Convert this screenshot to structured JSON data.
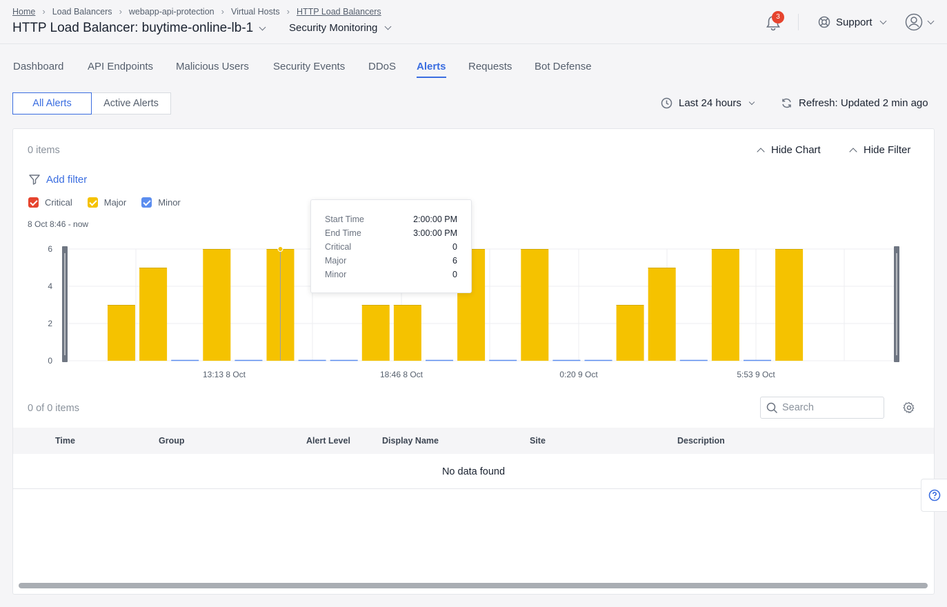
{
  "breadcrumb": [
    "Home",
    "Load Balancers",
    "webapp-api-protection",
    "Virtual Hosts",
    "HTTP Load Balancers"
  ],
  "page_title": "HTTP Load Balancer: buytime-online-lb-1",
  "workspace": "Security Monitoring",
  "notifications": {
    "count": "3",
    "icon": "bell-icon"
  },
  "support_label": "Support",
  "tabs": [
    "Dashboard",
    "API Endpoints",
    "Malicious Users",
    "Security Events",
    "DDoS",
    "Alerts",
    "Requests",
    "Bot Defense"
  ],
  "active_tab": "Alerts",
  "alert_toggle": {
    "all": "All Alerts",
    "active": "Active Alerts"
  },
  "time_range": "Last 24 hours",
  "refresh": "Refresh: Updated 2 min ago",
  "card": {
    "items": "0 items",
    "hide_chart": "Hide Chart",
    "hide_filter": "Hide Filter",
    "add_filter": "Add filter",
    "range_label": "8 Oct 8:46 - now"
  },
  "legend": [
    {
      "label": "Critical",
      "color": "#e6442e"
    },
    {
      "label": "Major",
      "color": "#f5c200"
    },
    {
      "label": "Minor",
      "color": "#5b8def"
    }
  ],
  "chart_data": {
    "type": "bar",
    "stacked": true,
    "y_ticks": [
      0,
      2,
      4,
      6
    ],
    "ylim": [
      0,
      6
    ],
    "x_ticks": [
      "13:13 8 Oct",
      "18:46 8 Oct",
      "0:20 9 Oct",
      "5:53 9 Oct"
    ],
    "grid": true,
    "series": [
      {
        "name": "Critical",
        "color": "#e6442e",
        "values": [
          0,
          0,
          0,
          0,
          0,
          0,
          0,
          0,
          0,
          0,
          0,
          0,
          0,
          0,
          0,
          0,
          0,
          0,
          0,
          0,
          0,
          0
        ]
      },
      {
        "name": "Major",
        "color": "#f5c200",
        "values": [
          3,
          5,
          0,
          6,
          0,
          6,
          0,
          0,
          3,
          3,
          0,
          6,
          0,
          6,
          0,
          0,
          3,
          5,
          0,
          6,
          0,
          6
        ]
      },
      {
        "name": "Minor",
        "color": "#5b8def",
        "values": [
          0,
          0,
          0,
          0,
          0,
          0,
          0,
          0,
          0,
          0,
          0,
          0,
          0,
          0,
          0,
          0,
          0,
          0,
          0,
          0,
          0,
          0
        ]
      }
    ],
    "highlight_index": 5
  },
  "tooltip": [
    {
      "key": "Start Time",
      "value": "2:00:00 PM"
    },
    {
      "key": "End Time",
      "value": "3:00:00 PM"
    },
    {
      "key": "Critical",
      "value": "0"
    },
    {
      "key": "Major",
      "value": "6"
    },
    {
      "key": "Minor",
      "value": "0"
    }
  ],
  "table": {
    "count": "0 of 0 items",
    "search_placeholder": "Search",
    "columns": [
      "Time",
      "Group",
      "Alert Level",
      "Display Name",
      "Site",
      "Description"
    ],
    "empty": "No data found"
  }
}
